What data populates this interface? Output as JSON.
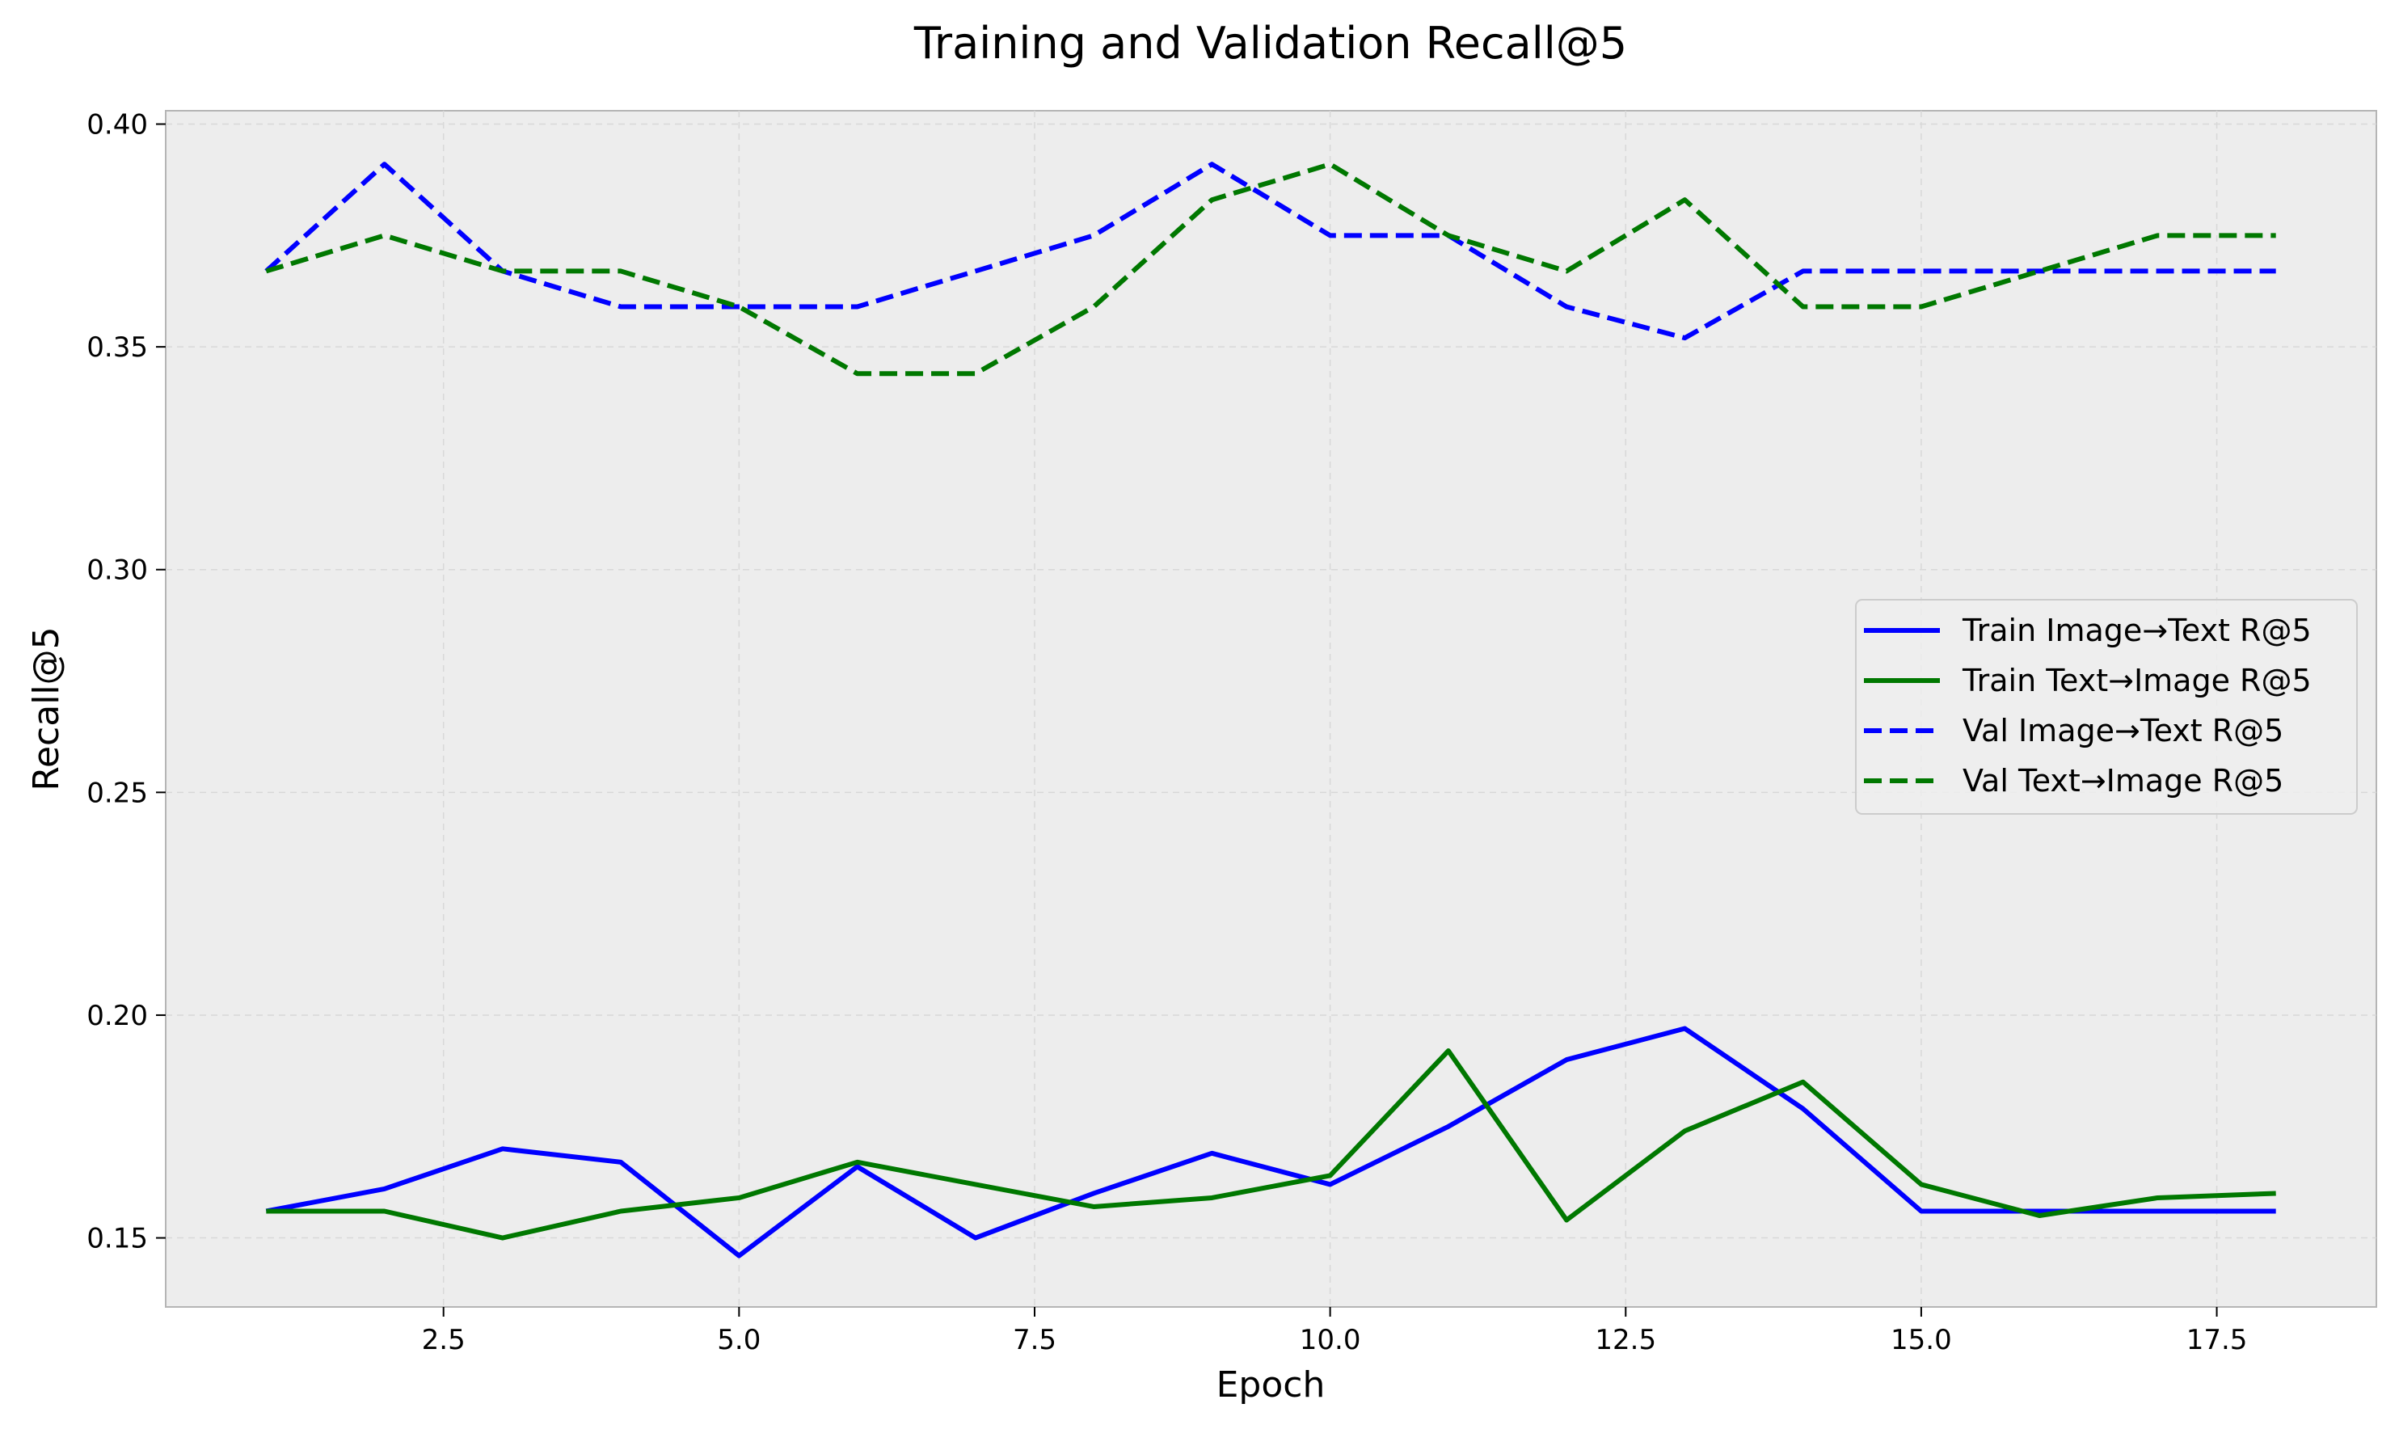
{
  "chart_data": {
    "type": "line",
    "title": "Training and Validation Recall@5",
    "xlabel": "Epoch",
    "ylabel": "Recall@5",
    "xlim": [
      0.15,
      18.85
    ],
    "ylim": [
      0.1345,
      0.403
    ],
    "xticks": [
      2.5,
      5.0,
      7.5,
      10.0,
      12.5,
      15.0,
      17.5
    ],
    "xtick_labels": [
      "2.5",
      "5.0",
      "7.5",
      "10.0",
      "12.5",
      "15.0",
      "17.5"
    ],
    "yticks": [
      0.15,
      0.2,
      0.25,
      0.3,
      0.35,
      0.4
    ],
    "ytick_labels": [
      "0.15",
      "0.20",
      "0.25",
      "0.30",
      "0.35",
      "0.40"
    ],
    "grid": true,
    "legend_position": "center-right",
    "x": [
      1,
      2,
      3,
      4,
      5,
      6,
      7,
      8,
      9,
      10,
      11,
      12,
      13,
      14,
      15,
      16,
      17,
      18
    ],
    "series": [
      {
        "name": "Train Image→Text R@5",
        "color": "#0000ff",
        "style": "solid",
        "values": [
          0.156,
          0.161,
          0.17,
          0.167,
          0.146,
          0.166,
          0.15,
          0.16,
          0.169,
          0.162,
          0.175,
          0.19,
          0.197,
          0.179,
          0.156,
          0.156,
          0.156,
          0.156
        ]
      },
      {
        "name": "Train Text→Image R@5",
        "color": "#007800",
        "style": "solid",
        "values": [
          0.156,
          0.156,
          0.15,
          0.156,
          0.159,
          0.167,
          0.162,
          0.157,
          0.159,
          0.164,
          0.192,
          0.154,
          0.174,
          0.185,
          0.162,
          0.155,
          0.159,
          0.16
        ]
      },
      {
        "name": "Val Image→Text R@5",
        "color": "#0000ff",
        "style": "dashed",
        "values": [
          0.367,
          0.391,
          0.367,
          0.359,
          0.359,
          0.359,
          0.367,
          0.375,
          0.391,
          0.375,
          0.375,
          0.359,
          0.352,
          0.367,
          0.367,
          0.367,
          0.367,
          0.367
        ]
      },
      {
        "name": "Val Text→Image R@5",
        "color": "#007800",
        "style": "dashed",
        "values": [
          0.367,
          0.375,
          0.367,
          0.367,
          0.359,
          0.344,
          0.344,
          0.359,
          0.383,
          0.391,
          0.375,
          0.367,
          0.383,
          0.359,
          0.359,
          0.367,
          0.375,
          0.375
        ]
      }
    ]
  }
}
